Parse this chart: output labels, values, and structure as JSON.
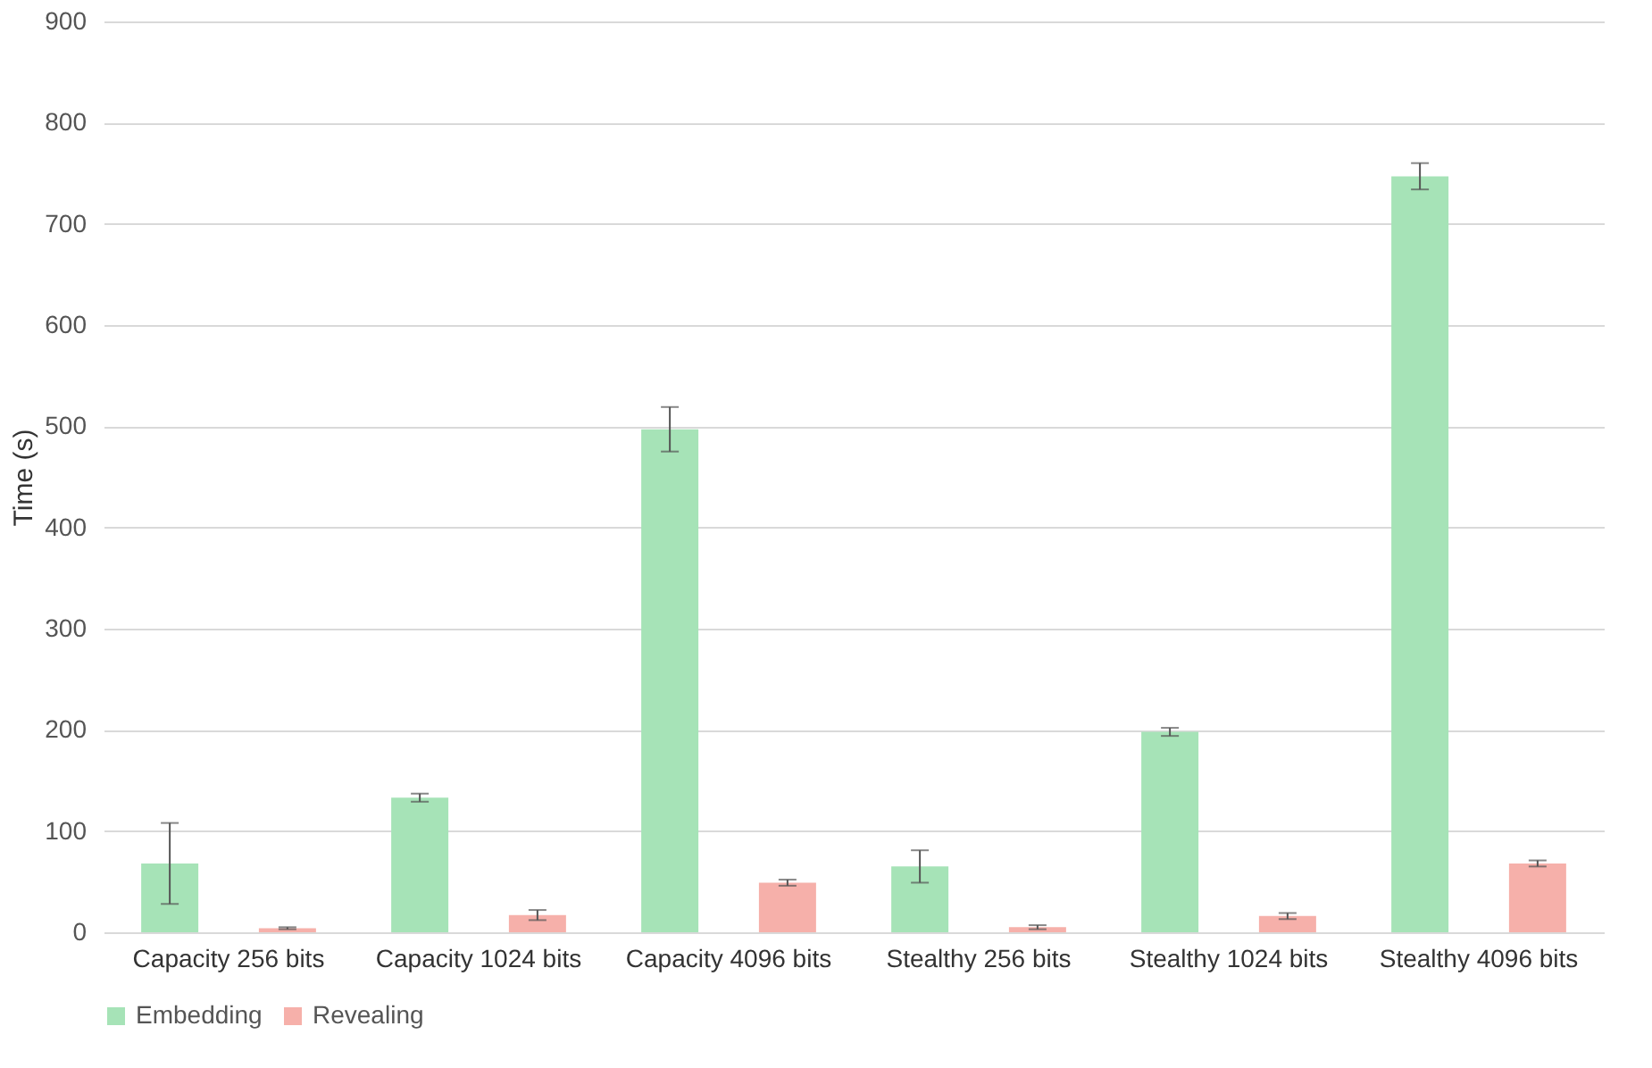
{
  "chart_data": {
    "type": "bar",
    "ylabel": "Time (s)",
    "categories": [
      "Capacity 256 bits",
      "Capacity 1024 bits",
      "Capacity 4096 bits",
      "Stealthy 256 bits",
      "Stealthy 1024 bits",
      "Stealthy 4096 bits"
    ],
    "series": [
      {
        "name": "Embedding",
        "color": "#a6e3b7",
        "values": [
          68,
          133,
          497,
          65,
          198,
          747
        ],
        "errors": [
          40,
          4,
          22,
          16,
          4,
          13
        ]
      },
      {
        "name": "Revealing",
        "color": "#f6b0aa",
        "values": [
          4,
          17,
          49,
          5,
          16,
          68
        ],
        "errors": [
          1,
          5,
          3,
          2,
          3,
          3
        ]
      }
    ],
    "ylim": [
      0,
      900
    ],
    "yticks": [
      0,
      100,
      200,
      300,
      400,
      500,
      600,
      700,
      800,
      900
    ],
    "grid": "y",
    "legend": "bottom"
  }
}
